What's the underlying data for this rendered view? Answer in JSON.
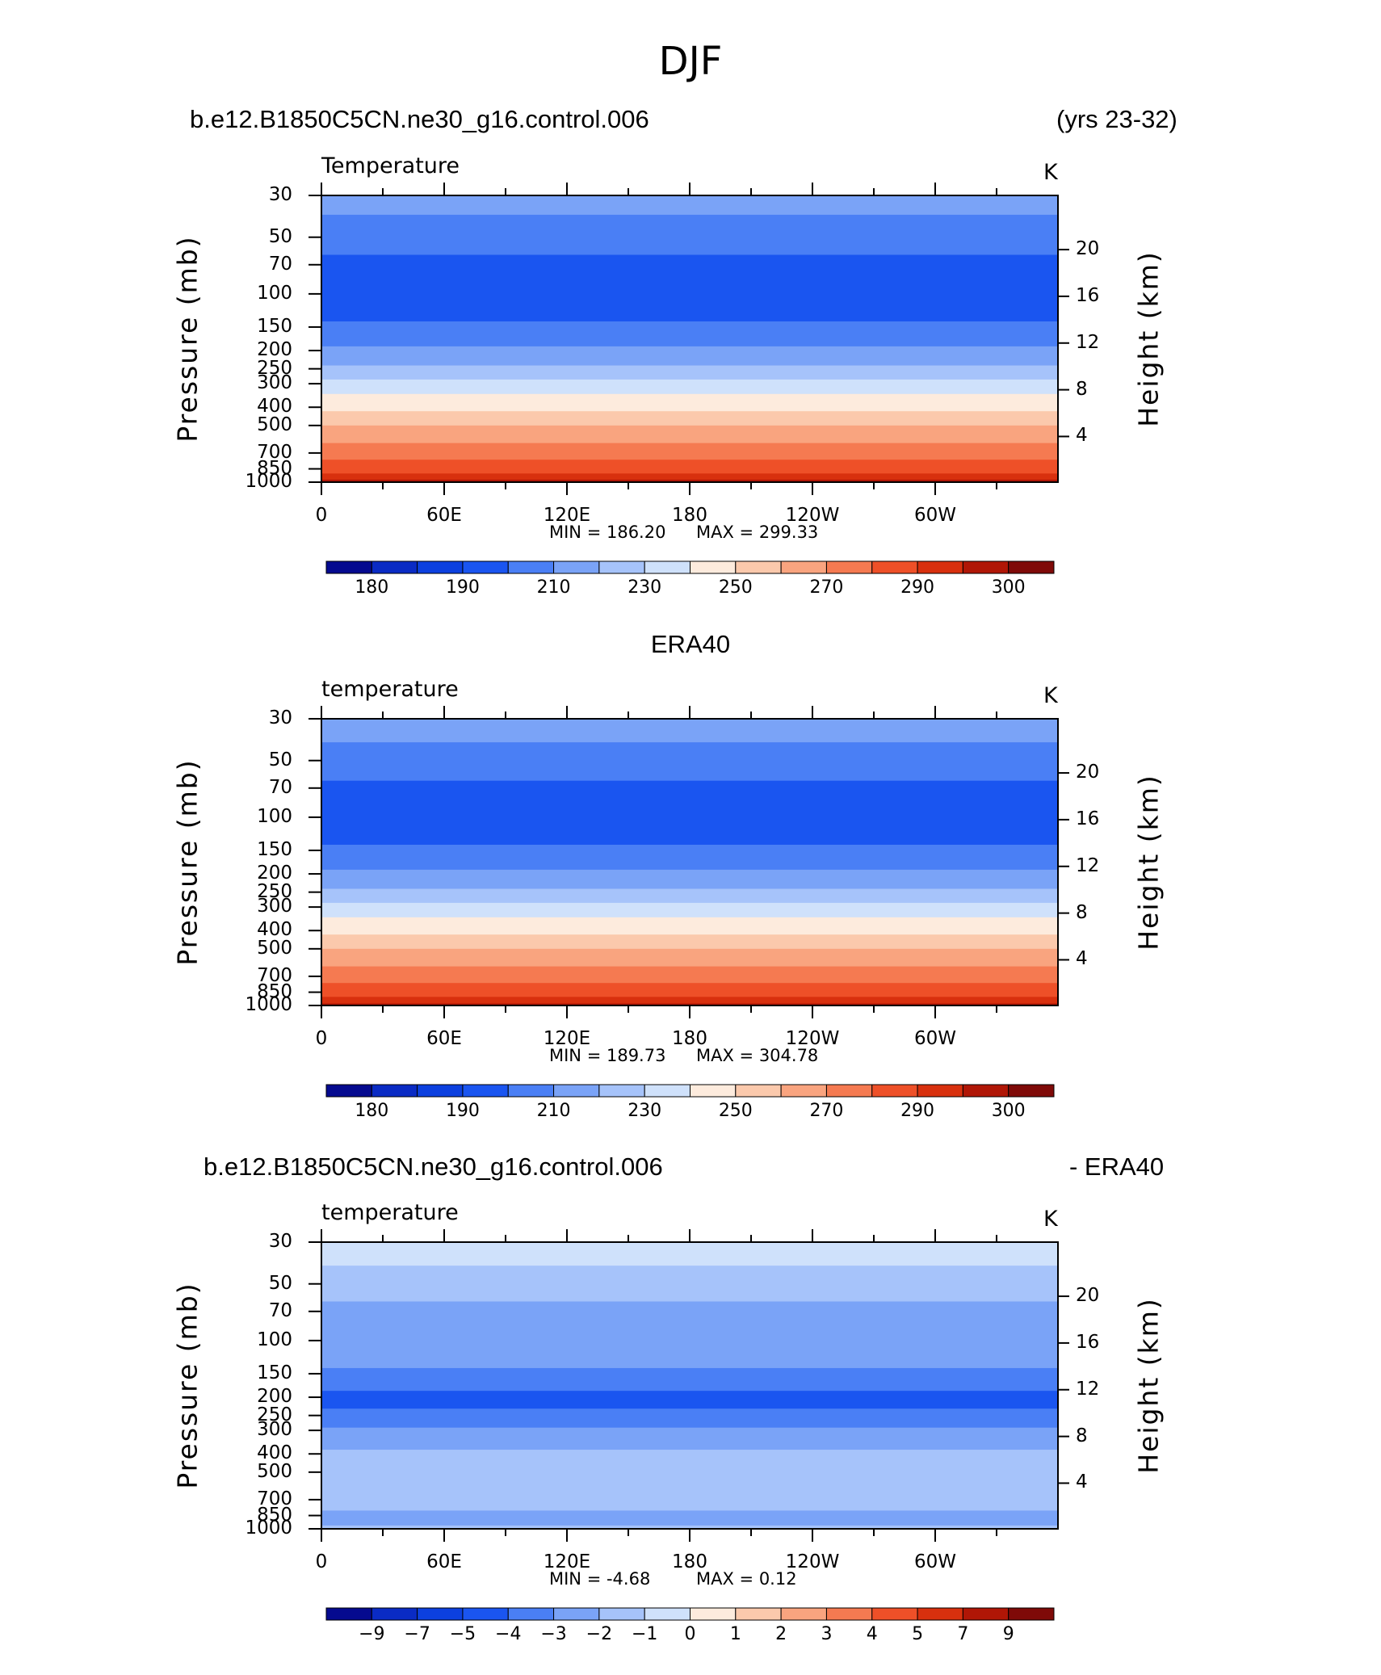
{
  "figure": {
    "title": "DJF",
    "header_left": "b.e12.B1850C5CN.ne30_g16.control.006",
    "header_right": "(yrs 23-32)",
    "middle_header": "ERA40",
    "diff_header_left": "b.e12.B1850C5CN.ne30_g16.control.006",
    "diff_header_right": "- ERA40"
  },
  "chart_data": [
    {
      "type": "heatmap",
      "title": "Temperature",
      "units": "K",
      "xlabel": "",
      "ylabel": "Pressure (mb)",
      "y2label": "Height (km)",
      "x_ticks": [
        "0",
        "60E",
        "120E",
        "180",
        "120W",
        "60W"
      ],
      "y_ticks": [
        "30",
        "50",
        "70",
        "100",
        "150",
        "200",
        "250",
        "300",
        "400",
        "500",
        "700",
        "850",
        "1000"
      ],
      "y2_ticks": [
        "20",
        "16",
        "12",
        "8",
        "4"
      ],
      "ylim": [
        1000,
        30
      ],
      "y_scale": "log",
      "min_label": "MIN = 186.20",
      "max_label": "MAX = 299.33",
      "min": 186.2,
      "max": 299.33,
      "colorbar_labels": [
        "180",
        "190",
        "210",
        "230",
        "250",
        "270",
        "290",
        "300"
      ],
      "colorbar_colors": [
        "#050a8f",
        "#0a2bc4",
        "#0c40df",
        "#1a55f0",
        "#4a7ff5",
        "#7aa3f7",
        "#a6c3fa",
        "#cfe1fb",
        "#fdebdd",
        "#fbc9ac",
        "#f9a47f",
        "#f57a51",
        "#ee5028",
        "#d8300e",
        "#b01606",
        "#7f0a08"
      ],
      "levels": [
        {
          "p": 30,
          "c": "#7aa3f7"
        },
        {
          "p": 38,
          "c": "#4a7ff5"
        },
        {
          "p": 62,
          "c": "#1a55f0"
        },
        {
          "p": 140,
          "c": "#4a7ff5"
        },
        {
          "p": 190,
          "c": "#7aa3f7"
        },
        {
          "p": 240,
          "c": "#a6c3fa"
        },
        {
          "p": 285,
          "c": "#cfe1fb"
        },
        {
          "p": 340,
          "c": "#fdebdd"
        },
        {
          "p": 420,
          "c": "#fbc9ac"
        },
        {
          "p": 500,
          "c": "#f9a47f"
        },
        {
          "p": 620,
          "c": "#f57a51"
        },
        {
          "p": 760,
          "c": "#ee5028"
        },
        {
          "p": 900,
          "c": "#d8300e"
        },
        {
          "p": 970,
          "c": "#b01606"
        }
      ]
    },
    {
      "type": "heatmap",
      "title": "temperature",
      "units": "K",
      "xlabel": "",
      "ylabel": "Pressure (mb)",
      "y2label": "Height (km)",
      "x_ticks": [
        "0",
        "60E",
        "120E",
        "180",
        "120W",
        "60W"
      ],
      "y_ticks": [
        "30",
        "50",
        "70",
        "100",
        "150",
        "200",
        "250",
        "300",
        "400",
        "500",
        "700",
        "850",
        "1000"
      ],
      "y2_ticks": [
        "20",
        "16",
        "12",
        "8",
        "4"
      ],
      "ylim": [
        1000,
        30
      ],
      "y_scale": "log",
      "min_label": "MIN = 189.73",
      "max_label": "MAX = 304.78",
      "min": 189.73,
      "max": 304.78,
      "colorbar_labels": [
        "180",
        "190",
        "210",
        "230",
        "250",
        "270",
        "290",
        "300"
      ],
      "colorbar_colors": [
        "#050a8f",
        "#0a2bc4",
        "#0c40df",
        "#1a55f0",
        "#4a7ff5",
        "#7aa3f7",
        "#a6c3fa",
        "#cfe1fb",
        "#fdebdd",
        "#fbc9ac",
        "#f9a47f",
        "#f57a51",
        "#ee5028",
        "#d8300e",
        "#b01606",
        "#7f0a08"
      ],
      "levels": [
        {
          "p": 30,
          "c": "#7aa3f7"
        },
        {
          "p": 40,
          "c": "#4a7ff5"
        },
        {
          "p": 64,
          "c": "#1a55f0"
        },
        {
          "p": 140,
          "c": "#4a7ff5"
        },
        {
          "p": 190,
          "c": "#7aa3f7"
        },
        {
          "p": 240,
          "c": "#a6c3fa"
        },
        {
          "p": 285,
          "c": "#cfe1fb"
        },
        {
          "p": 340,
          "c": "#fdebdd"
        },
        {
          "p": 420,
          "c": "#fbc9ac"
        },
        {
          "p": 500,
          "c": "#f9a47f"
        },
        {
          "p": 620,
          "c": "#f57a51"
        },
        {
          "p": 760,
          "c": "#ee5028"
        },
        {
          "p": 900,
          "c": "#d8300e"
        },
        {
          "p": 975,
          "c": "#b01606"
        }
      ]
    },
    {
      "type": "heatmap",
      "title": "temperature",
      "units": "K",
      "xlabel": "",
      "ylabel": "Pressure (mb)",
      "y2label": "Height (km)",
      "x_ticks": [
        "0",
        "60E",
        "120E",
        "180",
        "120W",
        "60W"
      ],
      "y_ticks": [
        "30",
        "50",
        "70",
        "100",
        "150",
        "200",
        "250",
        "300",
        "400",
        "500",
        "700",
        "850",
        "1000"
      ],
      "y2_ticks": [
        "20",
        "16",
        "12",
        "8",
        "4"
      ],
      "ylim": [
        1000,
        30
      ],
      "y_scale": "log",
      "min_label": "MIN = -4.68",
      "max_label": "MAX = 0.12",
      "min": -4.68,
      "max": 0.12,
      "colorbar_labels": [
        "-9",
        "-7",
        "-5",
        "-4",
        "-3",
        "-2",
        "-1",
        "0",
        "1",
        "2",
        "3",
        "4",
        "5",
        "7",
        "9"
      ],
      "colorbar_colors": [
        "#050a8f",
        "#0a2bc4",
        "#0c40df",
        "#1a55f0",
        "#4a7ff5",
        "#7aa3f7",
        "#a6c3fa",
        "#cfe1fb",
        "#fdebdd",
        "#fbc9ac",
        "#f9a47f",
        "#f57a51",
        "#ee5028",
        "#d8300e",
        "#b01606",
        "#7f0a08"
      ],
      "levels": [
        {
          "p": 30,
          "c": "#cfe1fb"
        },
        {
          "p": 40,
          "c": "#a6c3fa"
        },
        {
          "p": 62,
          "c": "#7aa3f7"
        },
        {
          "p": 140,
          "c": "#4a7ff5"
        },
        {
          "p": 185,
          "c": "#1a55f0"
        },
        {
          "p": 230,
          "c": "#4a7ff5"
        },
        {
          "p": 290,
          "c": "#7aa3f7"
        },
        {
          "p": 380,
          "c": "#a6c3fa"
        },
        {
          "p": 600,
          "c": "#a6c3fa"
        },
        {
          "p": 800,
          "c": "#7aa3f7"
        },
        {
          "p": 960,
          "c": "#a6c3fa"
        }
      ]
    }
  ]
}
